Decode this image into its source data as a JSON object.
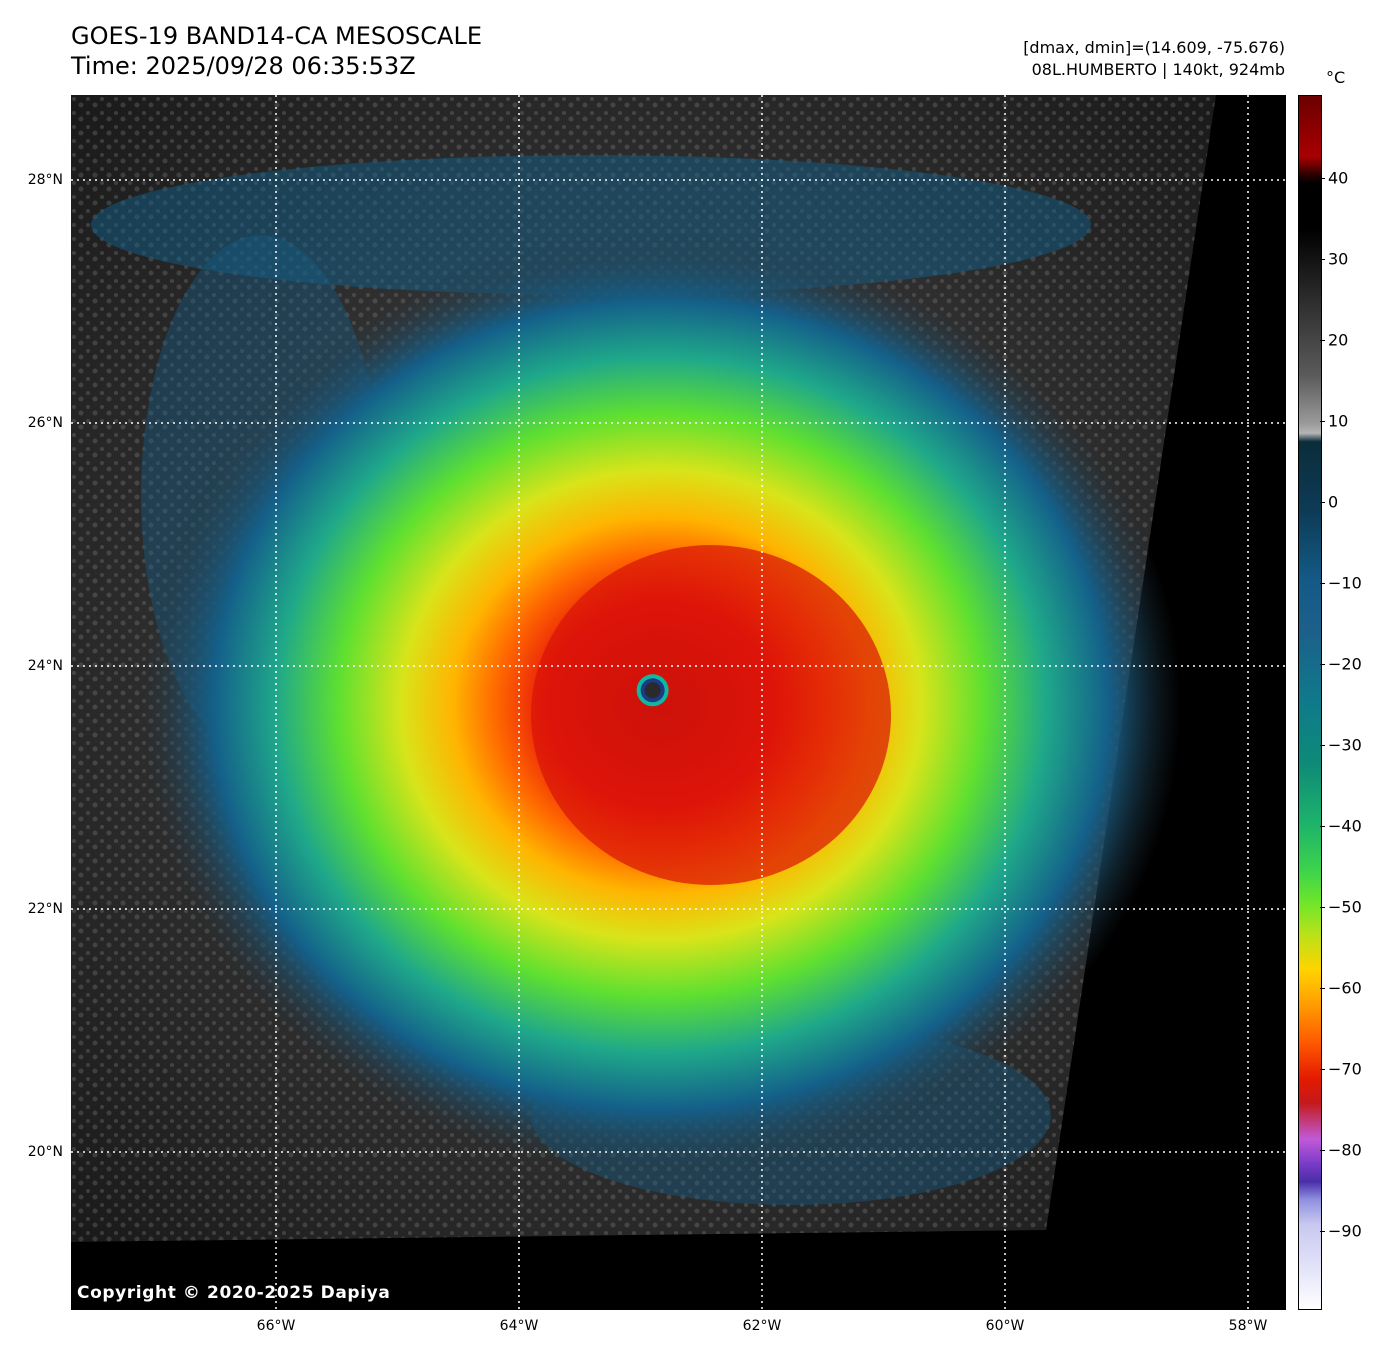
{
  "title_line1": "GOES-19 BAND14-CA MESOSCALE",
  "title_line2": "Time: 2025/09/28 06:35:53Z",
  "info_line1": "[dmax, dmin]=(14.609, -75.676)",
  "info_line2": "08L.HUMBERTO | 140kt, 924mb",
  "copyright": "Copyright © 2020-2025 Dapiya",
  "colorbar": {
    "unit": "°C",
    "ticks": [
      "40",
      "30",
      "20",
      "10",
      "0",
      "−10",
      "−20",
      "−30",
      "−40",
      "−50",
      "−60",
      "−70",
      "−80",
      "−90"
    ]
  },
  "map": {
    "lat_labels": [
      "28°N",
      "26°N",
      "24°N",
      "22°N",
      "20°N"
    ],
    "lon_labels": [
      "66°W",
      "64°W",
      "62°W",
      "60°W",
      "58°W"
    ],
    "storm_eye": {
      "lat": 23.8,
      "lon": -62.9
    }
  }
}
